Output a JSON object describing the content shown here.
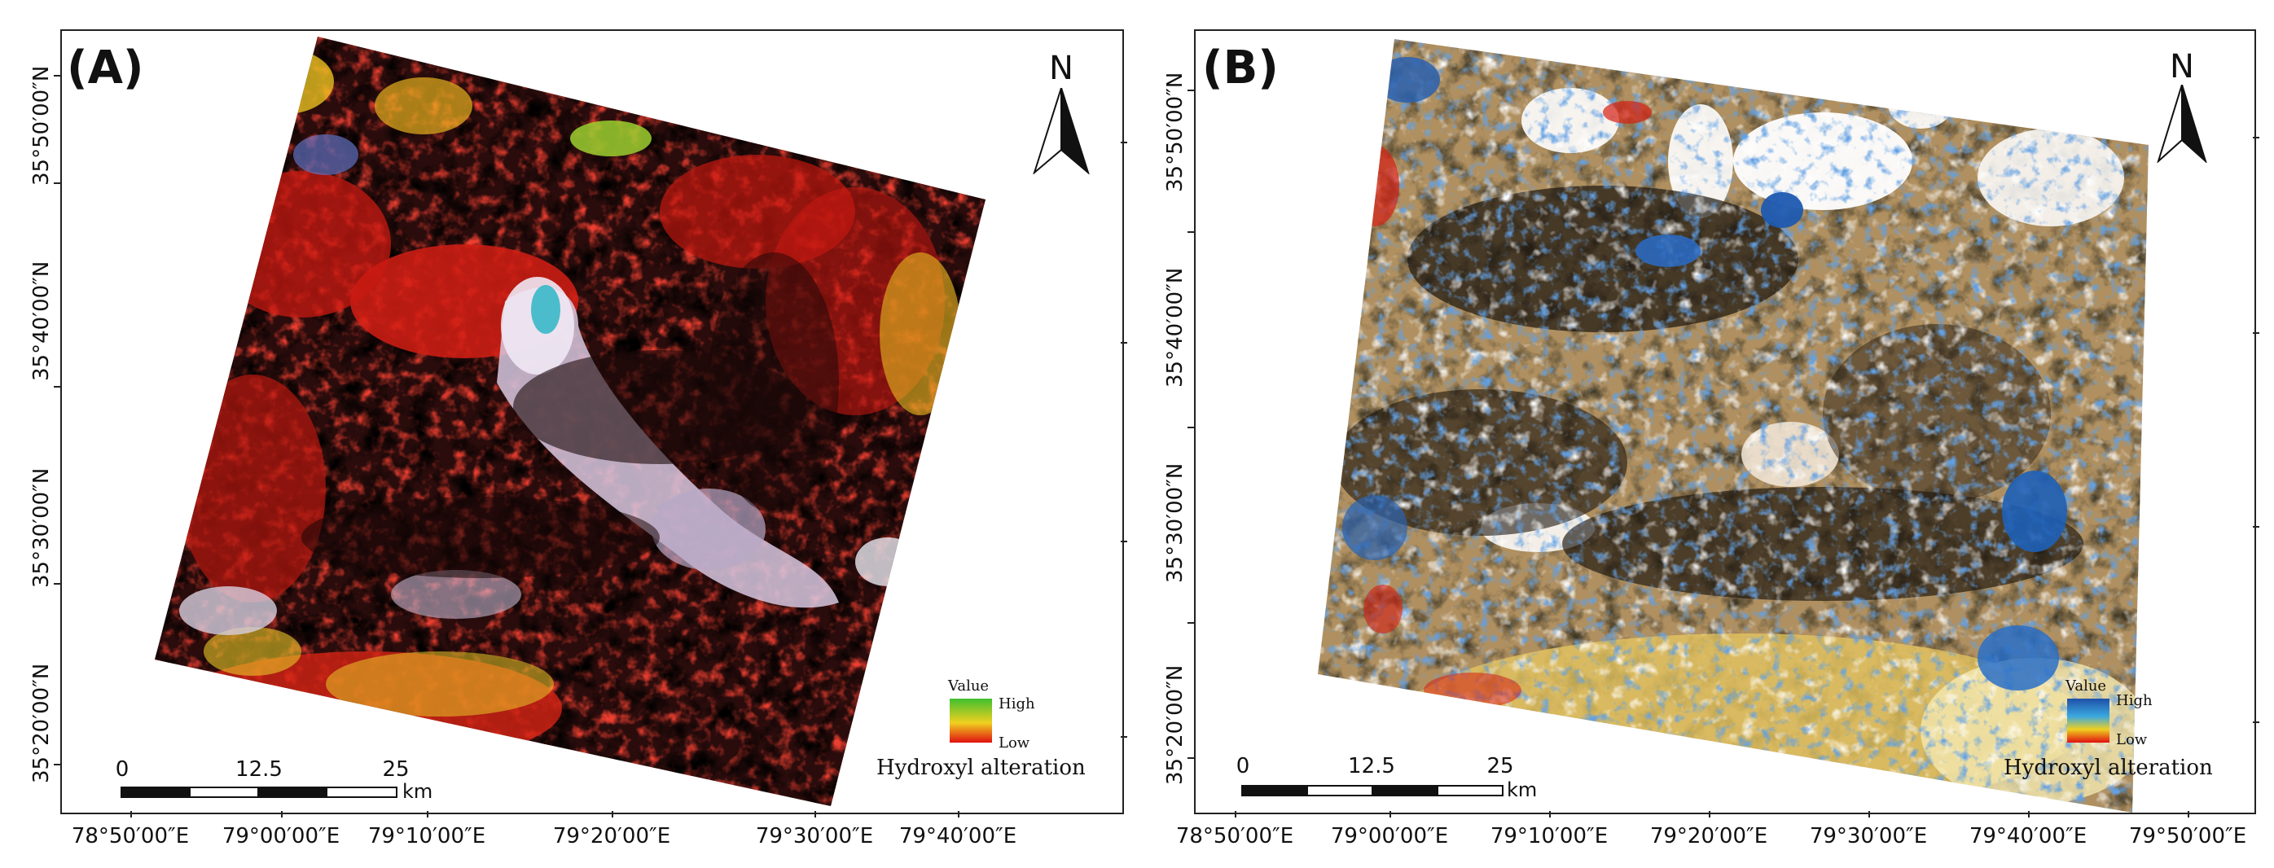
{
  "panels": [
    {
      "label": "(A)",
      "lat_labels": [
        "35°50′00″N",
        "35°40′00″N",
        "35°30′00″N",
        "35°20′00″N"
      ],
      "lon_labels": [
        "78°50′00″E",
        "79°00′00″E",
        "79°10′00″E",
        "79°20′00″E",
        "79°30′00″E",
        "79°40′00″E"
      ],
      "north_label": "N",
      "scale": {
        "ticks": [
          "0",
          "12.5",
          "25"
        ],
        "unit": "km"
      },
      "legend": {
        "title": "Value",
        "high": "High",
        "low": "Low",
        "caption": "Hydroxyl alteration",
        "colors": [
          "#3fbf2f",
          "#f0d020",
          "#e01010"
        ]
      }
    },
    {
      "label": "(B)",
      "lat_labels": [
        "35°50′00″N",
        "35°40′00″N",
        "35°30′00″N",
        "35°20′00″N"
      ],
      "lon_labels": [
        "78°50′00″E",
        "79°00′00″E",
        "79°10′00″E",
        "79°20′00″E",
        "79°30′00″E",
        "79°40′00″E",
        "79°50′00″E"
      ],
      "north_label": "N",
      "scale": {
        "ticks": [
          "0",
          "12.5",
          "25"
        ],
        "unit": "km"
      },
      "legend": {
        "title": "Value",
        "high": "High",
        "low": "Low",
        "caption": "Hydroxyl alteration",
        "colors": [
          "#1f4fa8",
          "#3aa8e0",
          "#f0d020",
          "#e01010"
        ]
      }
    }
  ]
}
